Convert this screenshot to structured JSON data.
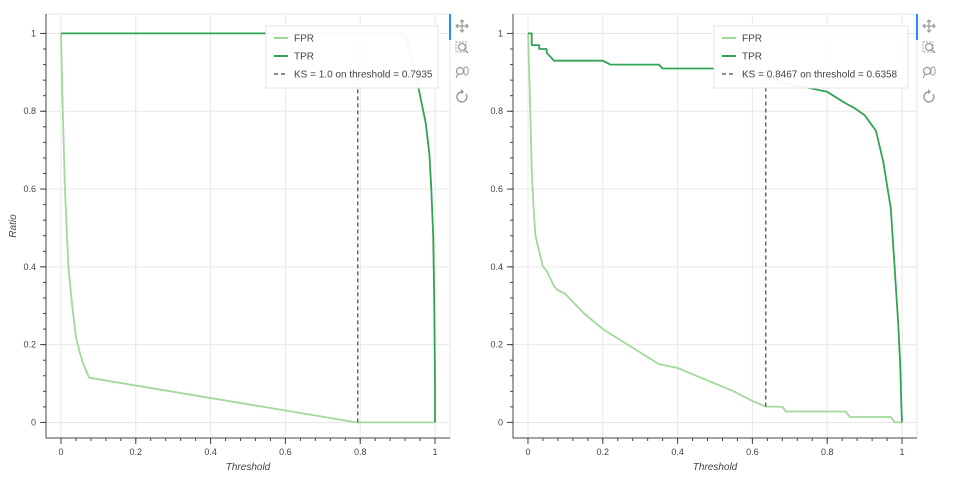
{
  "chart_data": [
    {
      "type": "line",
      "xlabel": "Threshold",
      "ylabel": "Ratio",
      "xlim": [
        -0.04,
        1.04
      ],
      "ylim": [
        -0.04,
        1.05
      ],
      "x_ticks": [
        0,
        0.2,
        0.4,
        0.6,
        0.8,
        1
      ],
      "y_ticks": [
        0,
        0.2,
        0.4,
        0.6,
        0.8,
        1
      ],
      "x_tick_labels": [
        "0",
        "0.2",
        "0.4",
        "0.6",
        "0.8",
        "1"
      ],
      "y_tick_labels": [
        "0",
        "0.2",
        "0.4",
        "0.6",
        "0.8",
        "1"
      ],
      "grid": true,
      "legend_position": "top-right",
      "series": [
        {
          "name": "FPR",
          "color": "#a1d99b",
          "x": [
            0,
            0.005,
            0.01,
            0.015,
            0.02,
            0.03,
            0.04,
            0.05,
            0.06,
            0.075,
            0.79,
            1.0
          ],
          "y": [
            1.0,
            0.8,
            0.62,
            0.5,
            0.4,
            0.3,
            0.22,
            0.18,
            0.15,
            0.115,
            0.0,
            0.0
          ]
        },
        {
          "name": "TPR",
          "color": "#31a354",
          "x": [
            0,
            0.6,
            0.92,
            0.94,
            0.96,
            0.975,
            0.985,
            0.99,
            0.995,
            0.998,
            1.0,
            1.0
          ],
          "y": [
            1.0,
            1.0,
            1.0,
            0.93,
            0.84,
            0.77,
            0.69,
            0.6,
            0.48,
            0.3,
            0.1,
            0.0
          ]
        },
        {
          "name": "KS = 1.0 on threshold = 0.7935",
          "color": "#444444",
          "style": "dashed",
          "x": [
            0.7935,
            0.7935
          ],
          "y": [
            0.0,
            1.0
          ]
        }
      ]
    },
    {
      "type": "line",
      "xlabel": "Threshold",
      "ylabel": "",
      "xlim": [
        -0.04,
        1.04
      ],
      "ylim": [
        -0.04,
        1.05
      ],
      "x_ticks": [
        0,
        0.2,
        0.4,
        0.6,
        0.8,
        1
      ],
      "y_ticks": [
        0,
        0.2,
        0.4,
        0.6,
        0.8,
        1
      ],
      "x_tick_labels": [
        "0",
        "0.2",
        "0.4",
        "0.6",
        "0.8",
        "1"
      ],
      "y_tick_labels": [
        "0",
        "0.2",
        "0.4",
        "0.6",
        "0.8",
        "1"
      ],
      "grid": true,
      "legend_position": "top-right",
      "series": [
        {
          "name": "FPR",
          "color": "#a1d99b",
          "x": [
            0,
            0.005,
            0.01,
            0.015,
            0.02,
            0.03,
            0.04,
            0.05,
            0.06,
            0.07,
            0.08,
            0.1,
            0.15,
            0.2,
            0.3,
            0.35,
            0.4,
            0.45,
            0.5,
            0.55,
            0.6,
            0.635,
            0.68,
            0.69,
            0.85,
            0.86,
            0.97,
            0.98,
            1.0
          ],
          "y": [
            1.0,
            0.85,
            0.65,
            0.55,
            0.48,
            0.44,
            0.4,
            0.39,
            0.37,
            0.35,
            0.34,
            0.33,
            0.28,
            0.24,
            0.18,
            0.15,
            0.14,
            0.12,
            0.1,
            0.08,
            0.055,
            0.041,
            0.04,
            0.028,
            0.028,
            0.014,
            0.014,
            0.0,
            0.0
          ]
        },
        {
          "name": "TPR",
          "color": "#31a354",
          "x": [
            0,
            0.01,
            0.01,
            0.03,
            0.03,
            0.05,
            0.05,
            0.06,
            0.07,
            0.08,
            0.1,
            0.2,
            0.22,
            0.35,
            0.36,
            0.5,
            0.51,
            0.6,
            0.635,
            0.7,
            0.8,
            0.85,
            0.87,
            0.9,
            0.93,
            0.95,
            0.97,
            0.98,
            0.99,
            0.995,
            0.998,
            1.0
          ],
          "y": [
            1.0,
            1.0,
            0.97,
            0.97,
            0.96,
            0.96,
            0.95,
            0.94,
            0.93,
            0.93,
            0.93,
            0.93,
            0.92,
            0.92,
            0.91,
            0.91,
            0.9,
            0.9,
            0.89,
            0.87,
            0.85,
            0.82,
            0.81,
            0.79,
            0.75,
            0.67,
            0.55,
            0.4,
            0.25,
            0.15,
            0.05,
            0.0
          ]
        },
        {
          "name": "KS = 0.8467 on threshold = 0.6358",
          "color": "#444444",
          "style": "dashed",
          "x": [
            0.6358,
            0.6358
          ],
          "y": [
            0.041,
            0.89
          ]
        }
      ]
    }
  ],
  "toolbar": {
    "icons": [
      "pan-icon",
      "box-zoom-icon",
      "wheel-zoom-icon",
      "reset-icon"
    ],
    "accent_color": "#1e90ff"
  }
}
